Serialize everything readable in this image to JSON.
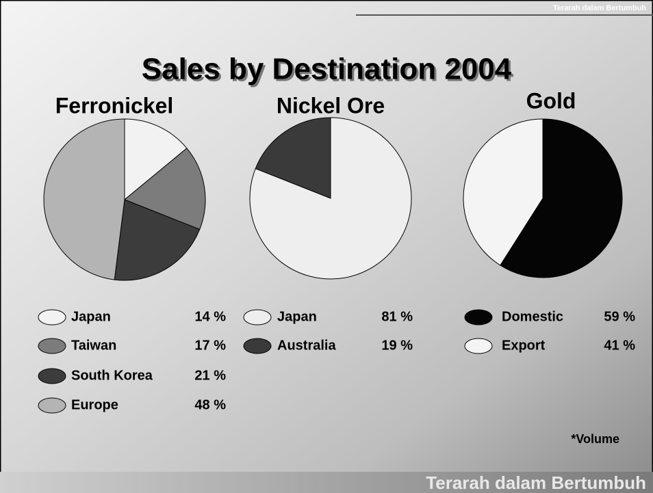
{
  "header": "Terarah dalam Bertumbuh",
  "title": "Sales by Destination 2004",
  "note": "*Volume",
  "footer": "Terarah dalam Bertumbuh",
  "chart_data": [
    {
      "type": "pie",
      "title": "Ferronickel",
      "categories": [
        "Japan",
        "Taiwan",
        "South Korea",
        "Europe"
      ],
      "values": [
        14,
        17,
        21,
        48
      ],
      "value_labels": [
        "14 %",
        "17 %",
        "21 %",
        "48 %"
      ],
      "colors": [
        "#f2f2f2",
        "#7c7c7c",
        "#3c3c3c",
        "#b4b4b4"
      ]
    },
    {
      "type": "pie",
      "title": "Nickel Ore",
      "categories": [
        "Japan",
        "Australia"
      ],
      "values": [
        81,
        19
      ],
      "value_labels": [
        "81 %",
        "19 %"
      ],
      "colors": [
        "#eeeeee",
        "#3a3a3a"
      ]
    },
    {
      "type": "pie",
      "title": "Gold",
      "categories": [
        "Domestic",
        "Export"
      ],
      "values": [
        59,
        41
      ],
      "value_labels": [
        "59 %",
        "41 %"
      ],
      "colors": [
        "#050505",
        "#f4f4f4"
      ]
    }
  ]
}
